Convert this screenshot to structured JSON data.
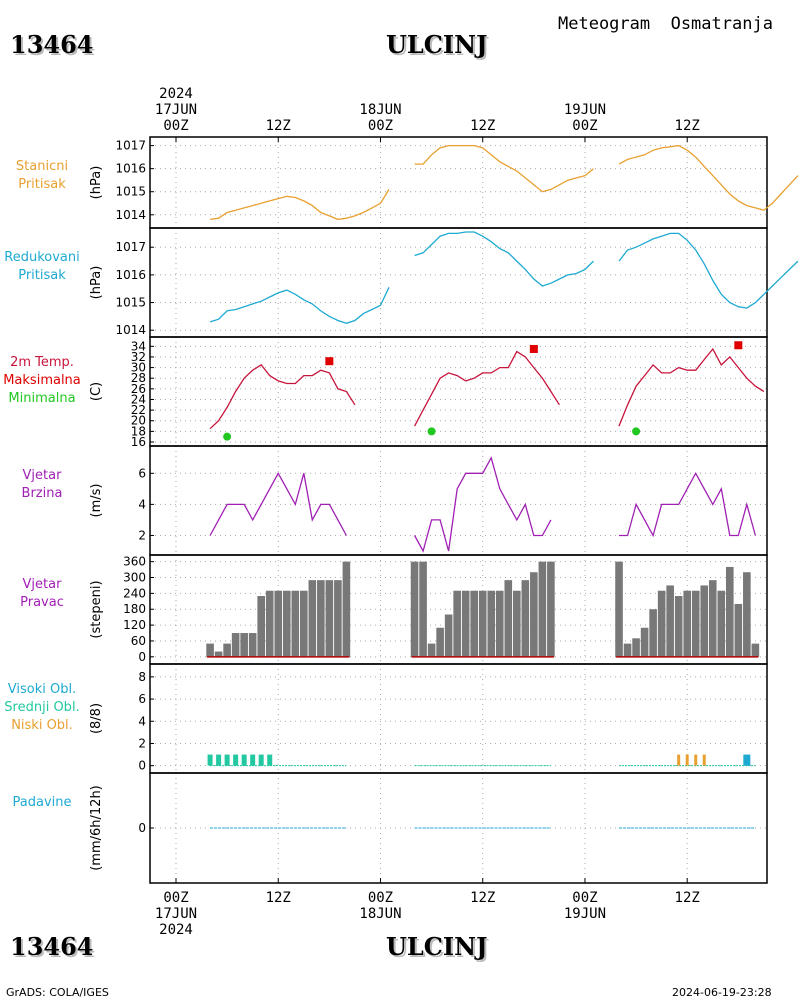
{
  "header": {
    "station_id": "13464",
    "station_name": "ULCINJ",
    "title": "Meteogram  Osmatranja"
  },
  "footer": {
    "credit": "GrADS: COLA/IGES",
    "timestamp": "2024-06-19-23:28"
  },
  "axis_top": {
    "year": "2024",
    "labels": [
      {
        "x": 0,
        "lines": [
          "17JUN",
          "00Z"
        ]
      },
      {
        "x": 12,
        "lines": [
          "12Z"
        ]
      },
      {
        "x": 24,
        "lines": [
          "18JUN",
          "00Z"
        ]
      },
      {
        "x": 36,
        "lines": [
          "12Z"
        ]
      },
      {
        "x": 48,
        "lines": [
          "19JUN",
          "00Z"
        ]
      },
      {
        "x": 60,
        "lines": [
          "12Z"
        ]
      }
    ]
  },
  "axis_bottom": {
    "year": "2024",
    "labels": [
      {
        "x": 0,
        "lines": [
          "00Z",
          "17JUN"
        ]
      },
      {
        "x": 12,
        "lines": [
          "12Z"
        ]
      },
      {
        "x": 24,
        "lines": [
          "00Z",
          "18JUN"
        ]
      },
      {
        "x": 36,
        "lines": [
          "12Z"
        ]
      },
      {
        "x": 48,
        "lines": [
          "00Z",
          "19JUN"
        ]
      },
      {
        "x": 60,
        "lines": [
          "12Z"
        ]
      }
    ]
  },
  "chart_data": [
    {
      "type": "line",
      "labels": [
        {
          "text": "Stanicni",
          "color": "#e8a030"
        },
        {
          "text": "Pritisak",
          "color": "#e8a030"
        }
      ],
      "ylabel": "(hPa)",
      "ylim": [
        1013.6,
        1017.2
      ],
      "yticks": [
        1014,
        1015,
        1016,
        1017
      ],
      "series": [
        {
          "color": "#e8a030",
          "segments": [
            {
              "x0": 4,
              "values": [
                1013.8,
                1013.85,
                1014.1,
                1014.2,
                1014.3,
                1014.4,
                1014.5,
                1014.6,
                1014.7,
                1014.8,
                1014.75,
                1014.6,
                1014.4,
                1014.1,
                1013.95,
                1013.8,
                1013.85,
                1013.95,
                1014.1,
                1014.3,
                1014.5,
                1015.1
              ]
            },
            {
              "x0": 28,
              "values": [
                1016.2,
                1016.2,
                1016.6,
                1016.9,
                1017.0,
                1017.0,
                1017.0,
                1017.0,
                1016.9,
                1016.6,
                1016.3,
                1016.1,
                1015.9,
                1015.6,
                1015.3,
                1015.0,
                1015.1,
                1015.3,
                1015.5,
                1015.6,
                1015.7,
                1016.0
              ]
            },
            {
              "x0": 52,
              "values": [
                1016.2,
                1016.4,
                1016.5,
                1016.6,
                1016.8,
                1016.9,
                1016.95,
                1017.0,
                1016.8,
                1016.5,
                1016.1,
                1015.7,
                1015.3,
                1014.9,
                1014.6,
                1014.4,
                1014.3,
                1014.2,
                1014.5,
                1014.9,
                1015.3,
                1015.7
              ]
            }
          ]
        }
      ]
    },
    {
      "type": "line",
      "labels": [
        {
          "text": "Redukovani",
          "color": "#1eaad2"
        },
        {
          "text": "Pritisak",
          "color": "#1eaad2"
        }
      ],
      "ylabel": "(hPa)",
      "ylim": [
        1013.9,
        1017.55
      ],
      "yticks": [
        1014,
        1015,
        1016,
        1017
      ],
      "series": [
        {
          "color": "#1eaad2",
          "segments": [
            {
              "x0": 4,
              "values": [
                1014.3,
                1014.4,
                1014.7,
                1014.75,
                1014.85,
                1014.95,
                1015.05,
                1015.2,
                1015.35,
                1015.45,
                1015.3,
                1015.1,
                1014.95,
                1014.7,
                1014.5,
                1014.35,
                1014.25,
                1014.35,
                1014.6,
                1014.75,
                1014.9,
                1015.55
              ]
            },
            {
              "x0": 28,
              "values": [
                1016.7,
                1016.8,
                1017.1,
                1017.4,
                1017.5,
                1017.5,
                1017.55,
                1017.55,
                1017.4,
                1017.2,
                1016.95,
                1016.8,
                1016.5,
                1016.2,
                1015.85,
                1015.6,
                1015.7,
                1015.85,
                1016.0,
                1016.05,
                1016.2,
                1016.5
              ]
            },
            {
              "x0": 52,
              "values": [
                1016.5,
                1016.9,
                1017.0,
                1017.15,
                1017.3,
                1017.4,
                1017.5,
                1017.5,
                1017.25,
                1016.9,
                1016.4,
                1015.8,
                1015.3,
                1015.0,
                1014.85,
                1014.8,
                1015.0,
                1015.3,
                1015.6,
                1015.9,
                1016.2,
                1016.5
              ]
            }
          ]
        }
      ]
    },
    {
      "type": "line",
      "labels": [
        {
          "text": "2m Temp.",
          "color": "#c8143c"
        },
        {
          "text": "Maksimalna",
          "color": "#e00000"
        },
        {
          "text": "Minimalna",
          "color": "#22c822"
        }
      ],
      "ylabel": "(C)",
      "ylim": [
        16,
        35
      ],
      "yticks": [
        16,
        18,
        20,
        22,
        24,
        26,
        28,
        30,
        32,
        34
      ],
      "series": [
        {
          "color": "#c8143c",
          "segments": [
            {
              "x0": 4,
              "values": [
                18.5,
                20,
                22.5,
                25.5,
                28,
                29.5,
                30.5,
                28.5,
                27.5,
                27,
                27,
                28.5,
                28.5,
                29.5,
                29,
                26,
                25.5,
                23
              ]
            },
            {
              "x0": 28,
              "values": [
                19,
                22,
                25,
                28,
                29,
                28.5,
                27.5,
                28,
                29,
                29,
                30,
                30,
                33,
                32,
                30,
                28,
                25.5,
                23
              ]
            },
            {
              "x0": 52,
              "values": [
                19,
                23,
                26.5,
                28.5,
                30.5,
                29,
                29,
                30,
                29.5,
                29.5,
                31.5,
                33.5,
                30.5,
                32,
                30,
                28,
                26.5,
                25.5
              ]
            }
          ]
        }
      ],
      "max_points": [
        {
          "x": 18,
          "y": 31.2
        },
        {
          "x": 42,
          "y": 33.5
        },
        {
          "x": 66,
          "y": 34.2
        }
      ],
      "min_points": [
        {
          "x": 6,
          "y": 17
        },
        {
          "x": 30,
          "y": 18
        },
        {
          "x": 54,
          "y": 18
        }
      ]
    },
    {
      "type": "line",
      "labels": [
        {
          "text": "Vjetar",
          "color": "#a020b4"
        },
        {
          "text": "Brzina",
          "color": "#a020b4"
        }
      ],
      "ylabel": "(m/s)",
      "ylim": [
        1,
        7.5
      ],
      "yticks": [
        2,
        4,
        6
      ],
      "series": [
        {
          "color": "#a020b4",
          "segments": [
            {
              "x0": 4,
              "values": [
                2,
                3,
                4,
                4,
                4,
                3,
                4,
                5,
                6,
                5,
                4,
                6,
                3,
                4,
                4,
                3,
                2
              ]
            },
            {
              "x0": 28,
              "values": [
                2,
                1,
                3,
                3,
                1,
                5,
                6,
                6,
                6,
                7,
                5,
                4,
                3,
                4,
                2,
                2,
                3
              ]
            },
            {
              "x0": 52,
              "values": [
                2,
                2,
                4,
                3,
                2,
                4,
                4,
                4,
                5,
                6,
                5,
                4,
                5,
                2,
                2,
                4,
                2
              ]
            }
          ]
        }
      ]
    },
    {
      "type": "bar",
      "labels": [
        {
          "text": "Vjetar",
          "color": "#a020b4"
        },
        {
          "text": "Pravac",
          "color": "#a020b4"
        }
      ],
      "ylabel": "(stepeni)",
      "ylim": [
        -12,
        370
      ],
      "yticks": [
        0,
        60,
        120,
        180,
        240,
        300,
        360
      ],
      "bar_color": "#787878",
      "baseline_color": "#b40000",
      "groups": [
        {
          "x0": 4,
          "values": [
            50,
            20,
            50,
            90,
            90,
            90,
            230,
            250,
            250,
            250,
            250,
            250,
            290,
            290,
            290,
            290,
            360
          ]
        },
        {
          "x0": 28,
          "values": [
            360,
            360,
            50,
            110,
            160,
            250,
            250,
            250,
            250,
            250,
            250,
            290,
            250,
            290,
            320,
            360,
            360
          ]
        },
        {
          "x0": 52,
          "values": [
            360,
            50,
            70,
            110,
            180,
            250,
            270,
            230,
            250,
            250,
            270,
            290,
            250,
            340,
            200,
            320,
            50
          ]
        }
      ]
    },
    {
      "type": "bar",
      "labels": [
        {
          "text": "Visoki Obl.",
          "color": "#1eaad2"
        },
        {
          "text": "Srednji Obl.",
          "color": "#22c8a0"
        },
        {
          "text": "Niski Obl.",
          "color": "#e8a030"
        }
      ],
      "ylabel": "(8/8)",
      "ylim": [
        -0.3,
        8.8
      ],
      "yticks": [
        0,
        2,
        4,
        6,
        8
      ],
      "series": [
        {
          "name": "Srednji Obl.",
          "color": "#22c8a0",
          "points": [
            {
              "x": 4,
              "v": 1
            },
            {
              "x": 5,
              "v": 1
            },
            {
              "x": 6,
              "v": 1
            },
            {
              "x": 7,
              "v": 1
            },
            {
              "x": 8,
              "v": 1
            },
            {
              "x": 9,
              "v": 1
            },
            {
              "x": 10,
              "v": 1
            },
            {
              "x": 11,
              "v": 1
            }
          ]
        },
        {
          "name": "Niski Obl.",
          "color": "#e8a030",
          "points": [
            {
              "x": 59,
              "v": 1
            },
            {
              "x": 60,
              "v": 1
            },
            {
              "x": 61,
              "v": 1
            },
            {
              "x": 62,
              "v": 1
            }
          ]
        },
        {
          "name": "Visoki Obl.",
          "color": "#1eaad2",
          "points": [
            {
              "x": 67,
              "v": 1
            }
          ]
        }
      ],
      "trace_spans": [
        [
          4,
          20
        ],
        [
          28,
          44
        ],
        [
          52,
          68
        ]
      ]
    },
    {
      "type": "line",
      "labels": [
        {
          "text": "Padavine",
          "color": "#1eaad2"
        }
      ],
      "ylabel": "(mm/6h/12h)",
      "ylim": [
        -1,
        1
      ],
      "yticks": [
        0
      ],
      "trace_spans": [
        [
          4,
          20
        ],
        [
          28,
          44
        ],
        [
          52,
          68
        ]
      ],
      "trace_color": "#1eaad2"
    }
  ]
}
